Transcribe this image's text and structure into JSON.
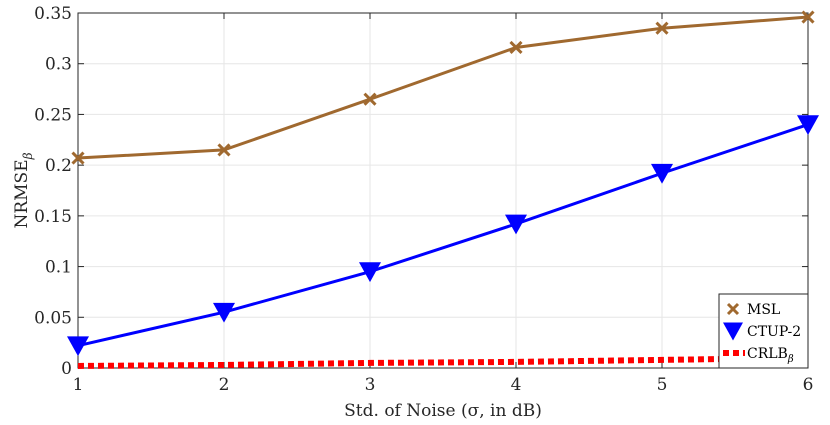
{
  "chart_data": {
    "type": "line",
    "xlabel": "Std. of Noise (σ, in dB)",
    "ylabel": "NRMSE",
    "ylabel_subscript": "β",
    "xlim": [
      1,
      6
    ],
    "ylim": [
      0,
      0.35
    ],
    "x_ticks": [
      "1",
      "2",
      "3",
      "4",
      "5",
      "6"
    ],
    "y_ticks": [
      "0",
      "0.05",
      "0.1",
      "0.15",
      "0.2",
      "0.25",
      "0.3",
      "0.35"
    ],
    "grid": true,
    "legend_position": "bottom-right",
    "x": [
      1,
      2,
      3,
      4,
      5,
      6
    ],
    "series": [
      {
        "name": "MSL",
        "values": [
          0.207,
          0.215,
          0.265,
          0.316,
          0.335,
          0.346
        ],
        "color": "#A0692F",
        "marker": "x",
        "style": "solid"
      },
      {
        "name": "CTUP-2",
        "values": [
          0.022,
          0.055,
          0.095,
          0.142,
          0.192,
          0.24
        ],
        "color": "#0000FF",
        "marker": "triangle-down",
        "style": "solid"
      },
      {
        "name": "CRLB",
        "name_subscript": "β",
        "values": [
          0.002,
          0.003,
          0.005,
          0.006,
          0.008,
          0.01
        ],
        "color": "#FF0000",
        "marker": "none",
        "style": "dotted"
      }
    ]
  }
}
